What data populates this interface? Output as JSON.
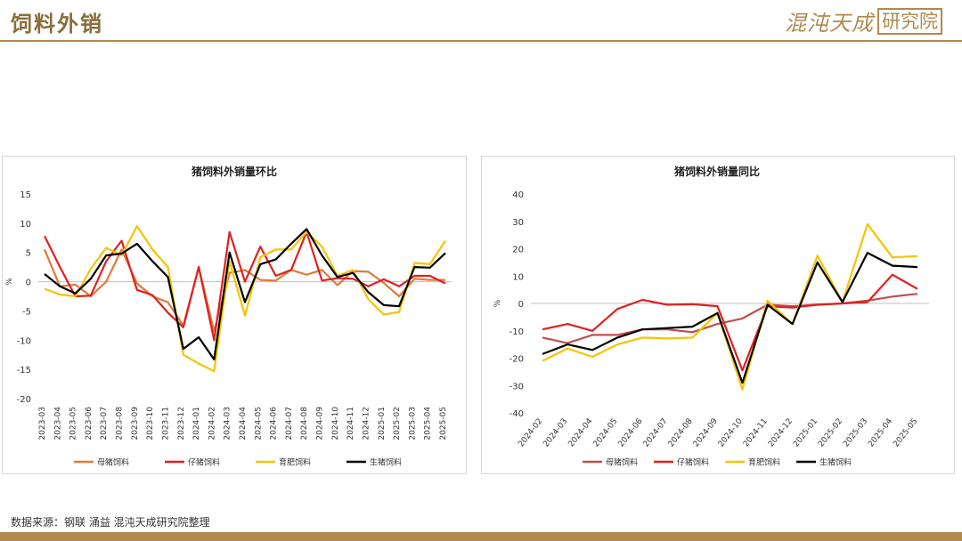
{
  "page": {
    "title": "饲料外销",
    "logo_main": "混沌天成",
    "logo_box": "研究院",
    "source_note": "数据来源：钢联 涌益 混沌天成研究院整理"
  },
  "colors": {
    "brand": "#b08a4e",
    "sow": "#e07b39",
    "piglet": "#e02020",
    "fattening": "#f5c400",
    "live": "#000000",
    "sow_right": "#c0504d"
  },
  "chart_data": [
    {
      "type": "line",
      "title": "猪饲料外销量环比",
      "xlabel": "",
      "ylabel": "%",
      "ylim": [
        -20,
        15
      ],
      "yticks": [
        15,
        10,
        5,
        0,
        -5,
        -10,
        -15,
        -20
      ],
      "grid": false,
      "legend_position": "bottom",
      "categories": [
        "2023-03",
        "2023-04",
        "2023-05",
        "2023-06",
        "2023-07",
        "2023-08",
        "2023-09",
        "2023-10",
        "2023-11",
        "2023-12",
        "2024-01",
        "2024-02",
        "2024-03",
        "2024-04",
        "2024-05",
        "2024-06",
        "2024-07",
        "2024-08",
        "2024-09",
        "2024-10",
        "2024-11",
        "2024-12",
        "2025-01",
        "2025-02",
        "2025-03",
        "2025-04",
        "2025-05"
      ],
      "series": [
        {
          "name": "母猪饲料",
          "color": "#e07b39",
          "values": [
            5.5,
            -0.8,
            -0.5,
            -2.5,
            0,
            5.5,
            -0.3,
            -2.5,
            -3.5,
            -7.5,
            2.5,
            -8.5,
            1.5,
            2.0,
            0.3,
            0.2,
            2.0,
            1.2,
            2.0,
            -0.6,
            1.8,
            1.7,
            -0.2,
            -2.5,
            0.5,
            0.3,
            0.3
          ]
        },
        {
          "name": "仔猪饲料",
          "color": "#e02020",
          "values": [
            7.8,
            2.5,
            -2.5,
            -2.4,
            3.5,
            7.0,
            -1.4,
            -2.3,
            -5.3,
            -7.8,
            2.5,
            -10.0,
            8.5,
            0,
            6.0,
            1.0,
            2.0,
            8.5,
            0.2,
            0.6,
            0.5,
            -0.8,
            0.4,
            -0.8,
            1.0,
            1.0,
            -0.3
          ]
        },
        {
          "name": "育肥饲料",
          "color": "#f5c400",
          "values": [
            -1.2,
            -2.2,
            -2.5,
            2.2,
            5.8,
            4.5,
            9.5,
            5.5,
            2.5,
            -12.5,
            -14.0,
            -15.3,
            3.5,
            -5.8,
            4.2,
            5.5,
            5.5,
            8.5,
            6.0,
            1.0,
            2.0,
            -3.0,
            -5.6,
            -5.2,
            3.2,
            3.0,
            7.0
          ]
        },
        {
          "name": "生猪饲料",
          "color": "#000000",
          "values": [
            1.3,
            -0.8,
            -2.0,
            0.5,
            4.5,
            4.8,
            6.5,
            3.5,
            0.8,
            -11.5,
            -9.5,
            -13.3,
            5.0,
            -3.5,
            3.0,
            3.8,
            6.5,
            9.0,
            4.5,
            0.8,
            1.5,
            -1.8,
            -4.0,
            -4.2,
            2.5,
            2.4,
            4.9
          ]
        }
      ]
    },
    {
      "type": "line",
      "title": "猪饲料外销量同比",
      "xlabel": "",
      "ylabel": "%",
      "ylim": [
        -40,
        40
      ],
      "yticks": [
        40,
        30,
        20,
        10,
        0,
        -10,
        -20,
        -30,
        -40
      ],
      "grid": false,
      "legend_position": "bottom",
      "categories": [
        "2024-02",
        "2024-03",
        "2024-04",
        "2024-05",
        "2024-06",
        "2024-07",
        "2024-08",
        "2024-09",
        "2024-10",
        "2024-11",
        "2024-12",
        "2025-01",
        "2025-02",
        "2025-03",
        "2025-04",
        "2025-05"
      ],
      "series": [
        {
          "name": "母猪饲料",
          "color": "#c0504d",
          "values": [
            -12.5,
            -14.5,
            -11.5,
            -11.5,
            -9.5,
            -9.5,
            -10.5,
            -7.5,
            -5.5,
            -0.5,
            -1.0,
            -0.5,
            0,
            1.0,
            2.5,
            3.5
          ]
        },
        {
          "name": "仔猪饲料",
          "color": "#e02020",
          "values": [
            -9.5,
            -7.5,
            -10.0,
            -2.0,
            1.3,
            -0.5,
            -0.3,
            -1.0,
            -24.5,
            -1.0,
            -1.5,
            -0.5,
            0,
            0.5,
            10.5,
            5.3
          ]
        },
        {
          "name": "育肥饲料",
          "color": "#f5c400",
          "values": [
            -21.0,
            -16.5,
            -19.5,
            -15.0,
            -12.5,
            -12.8,
            -12.5,
            -3.5,
            -31.5,
            1.0,
            -7.5,
            17.5,
            0.5,
            29.0,
            16.8,
            17.3
          ]
        },
        {
          "name": "生猪饲料",
          "color": "#000000",
          "values": [
            -18.5,
            -15.0,
            -17.0,
            -12.5,
            -9.5,
            -9.0,
            -8.5,
            -3.5,
            -29.0,
            -0.5,
            -7.5,
            15.0,
            0.5,
            18.5,
            13.8,
            13.3
          ]
        }
      ]
    }
  ]
}
